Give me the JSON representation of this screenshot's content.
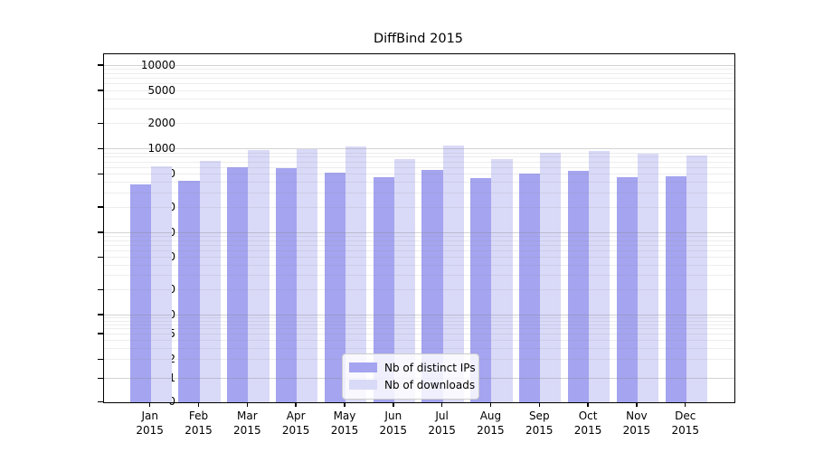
{
  "chart_data": {
    "type": "bar",
    "title": "DiffBind 2015",
    "categories": [
      "Jan",
      "Feb",
      "Mar",
      "Apr",
      "May",
      "Jun",
      "Jul",
      "Aug",
      "Sep",
      "Oct",
      "Nov",
      "Dec"
    ],
    "year": "2015",
    "series": [
      {
        "name": "Nb of distinct IPs",
        "color": "#a4a4f0",
        "values": [
          385,
          425,
          610,
          590,
          530,
          460,
          570,
          450,
          515,
          560,
          470,
          480
        ]
      },
      {
        "name": "Nb of downloads",
        "color": "#d9d9f8",
        "values": [
          630,
          730,
          975,
          1000,
          1090,
          760,
          1100,
          765,
          920,
          960,
          895,
          850
        ]
      }
    ],
    "yticks": [
      0,
      1,
      2,
      5,
      10,
      20,
      50,
      100,
      200,
      500,
      1000,
      2000,
      5000,
      10000
    ],
    "xlabel": "",
    "ylabel": "",
    "yscale": "log above 1, linear 0-1",
    "ylim": [
      0,
      13000
    ],
    "grid": "horizontal major and minor, drawn over bars",
    "legend_position": "lower center inside plot"
  }
}
